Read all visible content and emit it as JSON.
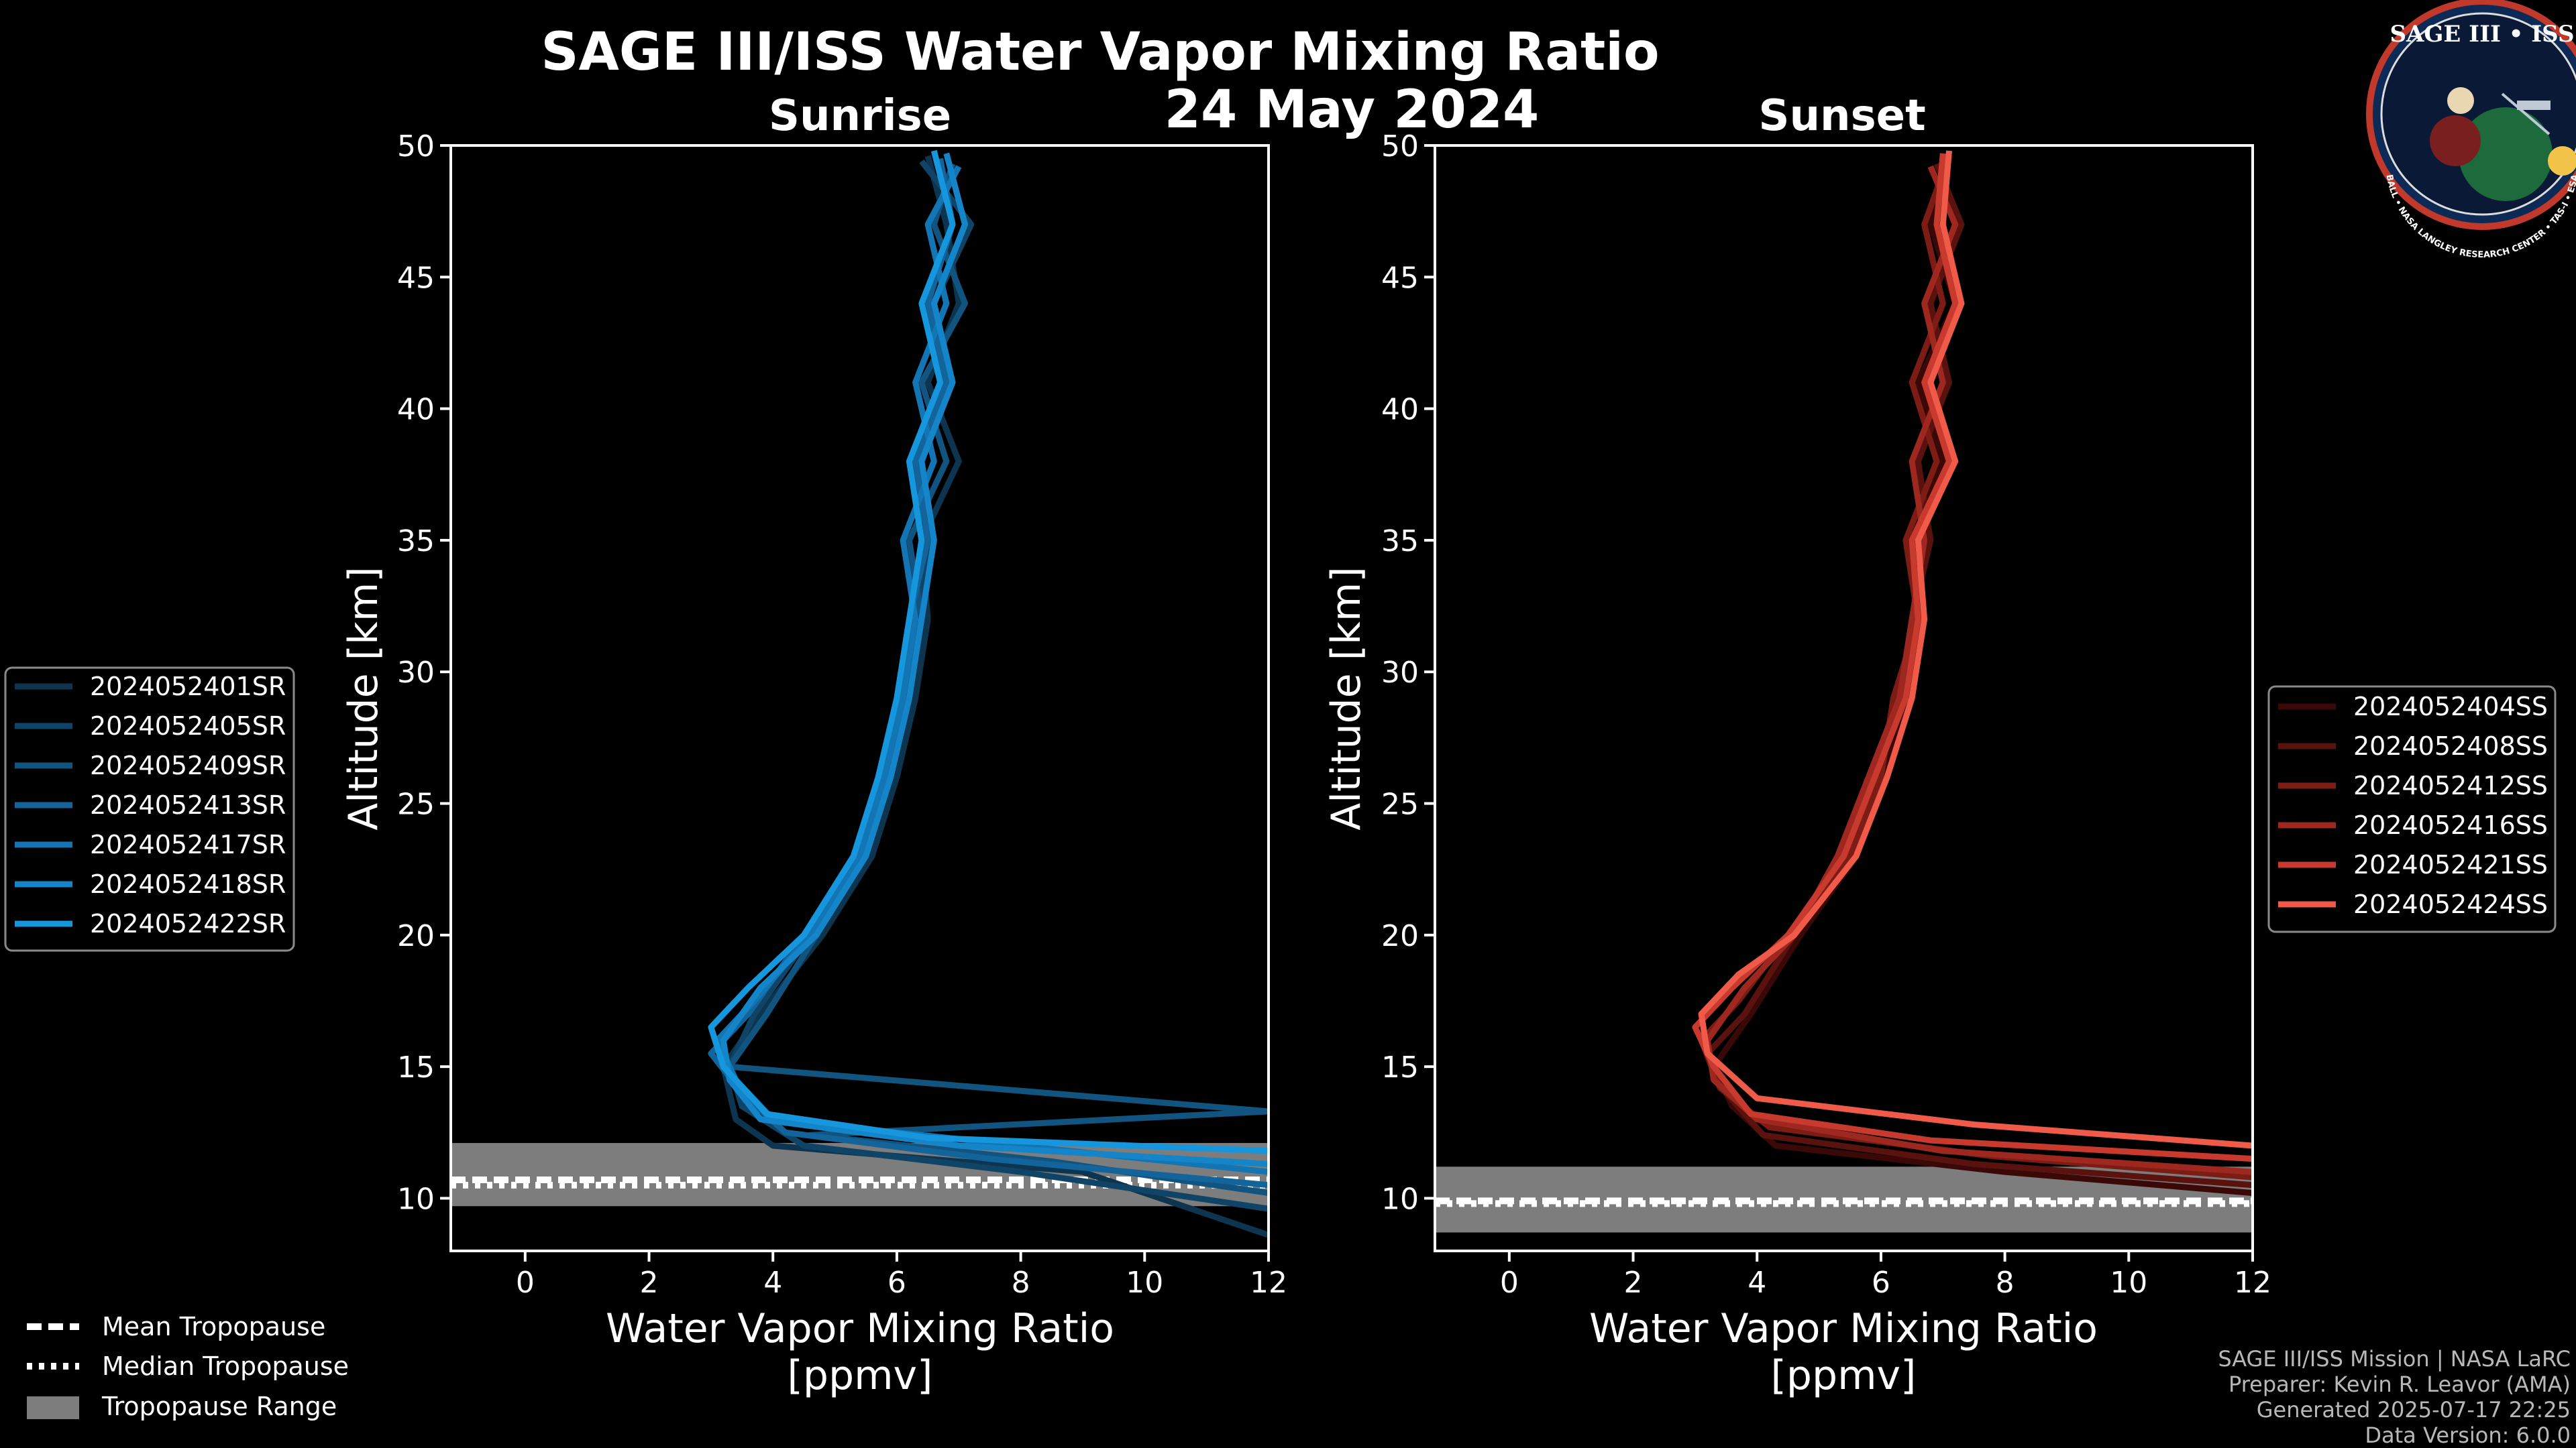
{
  "title": "SAGE III/ISS Water Vapor Mixing Ratio",
  "date": "24 May 2024",
  "logo": {
    "line1": "SAGE III",
    "line2": "ISS",
    "ring_text": "BALL • NASA LANGLEY RESEARCH CENTER • TAS-I • ESA"
  },
  "tropopause_legend": {
    "mean_label": "Mean Tropopause",
    "median_label": "Median Tropopause",
    "range_label": "Tropopause Range"
  },
  "credits": {
    "line1": "SAGE III/ISS Mission | NASA LaRC",
    "line2": "Preparer: Kevin R. Leavor (AMA)",
    "line3": "Generated 2025-07-17 22:25",
    "line4": "Data Version: 6.0.0"
  },
  "colors": {
    "background": "#000000",
    "sunrise_series": [
      "#0d3550",
      "#0f4467",
      "#115480",
      "#12649a",
      "#1375b4",
      "#1485c9",
      "#1696dc"
    ],
    "sunset_series": [
      "#3a0806",
      "#5a120e",
      "#7c1c15",
      "#9e281f",
      "#c83a2d",
      "#f05a48"
    ],
    "tropopause_range": "#7d7d7d"
  },
  "chart_data": [
    {
      "type": "line",
      "title": "Sunrise",
      "xlabel": "Water Vapor Mixing Ratio\n[ppmv]",
      "xlabel_line1": "Water Vapor Mixing Ratio",
      "xlabel_line2": "[ppmv]",
      "ylabel": "Altitude [km]",
      "xlim": [
        -1.2,
        12
      ],
      "ylim": [
        8,
        50
      ],
      "xticks": [
        0,
        2,
        4,
        6,
        8,
        10,
        12
      ],
      "yticks": [
        10,
        15,
        20,
        25,
        30,
        35,
        40,
        45,
        50
      ],
      "tropopause": {
        "mean": 10.7,
        "median": 10.5,
        "range": [
          9.7,
          12.1
        ]
      },
      "series": [
        {
          "name": "2024052401SR",
          "altitude_km": [
            8.6,
            11,
            12,
            13,
            15,
            17,
            20,
            23,
            26,
            29,
            32,
            35,
            38,
            41,
            44,
            47,
            49.6
          ],
          "wvmr_ppmv": [
            12,
            9,
            4,
            3.4,
            3.2,
            3.8,
            4.8,
            5.6,
            6,
            6.3,
            6.5,
            6.4,
            7,
            6.5,
            7,
            6.8,
            6.5
          ]
        },
        {
          "name": "2024052405SR",
          "altitude_km": [
            9.6,
            11,
            12,
            13.5,
            15,
            17,
            20,
            23,
            26,
            29,
            32,
            35,
            38,
            41,
            44,
            47,
            49.4
          ],
          "wvmr_ppmv": [
            12,
            8,
            4.5,
            3.5,
            3.3,
            3.7,
            4.6,
            5.4,
            5.8,
            6.1,
            6.3,
            6.6,
            6.4,
            6.9,
            6.6,
            7.2,
            6.4
          ]
        },
        {
          "name": "2024052409SR",
          "altitude_km": [
            10.2,
            11.4,
            12.4,
            13.3,
            15,
            17,
            20,
            23,
            26,
            29,
            32,
            35,
            38,
            41,
            44,
            47,
            49.3
          ],
          "wvmr_ppmv": [
            12,
            8.5,
            4.6,
            12,
            3.3,
            3.9,
            4.7,
            5.5,
            5.9,
            6.2,
            6.4,
            6.2,
            6.8,
            6.4,
            7.1,
            6.6,
            6.9
          ]
        },
        {
          "name": "2024052413SR",
          "altitude_km": [
            10.5,
            11.5,
            12.5,
            14,
            15.5,
            17,
            20,
            23,
            26,
            29,
            32,
            35,
            38,
            41,
            44,
            47,
            49.5
          ],
          "wvmr_ppmv": [
            12,
            7.5,
            4.2,
            3.5,
            3,
            3.6,
            4.5,
            5.3,
            5.7,
            6,
            6.2,
            6.5,
            6.3,
            6.8,
            6.5,
            6.9,
            6.7
          ]
        },
        {
          "name": "2024052417SR",
          "altitude_km": [
            11,
            12,
            13,
            14.5,
            16,
            17.5,
            20,
            23,
            26,
            29,
            32,
            35,
            38,
            41,
            44,
            47,
            49.2
          ],
          "wvmr_ppmv": [
            12,
            8,
            4,
            3.4,
            3.1,
            3.7,
            4.6,
            5.4,
            5.8,
            6.1,
            6.3,
            6.1,
            6.6,
            6.3,
            6.8,
            6.5,
            7
          ]
        },
        {
          "name": "2024052418SR",
          "altitude_km": [
            11.3,
            12,
            13,
            14.5,
            16,
            18,
            20,
            23,
            26,
            29,
            32,
            35,
            38,
            41,
            44,
            47,
            49.7
          ],
          "wvmr_ppmv": [
            12,
            7,
            3.8,
            3.3,
            3.2,
            3.8,
            4.7,
            5.5,
            5.9,
            6.2,
            6.4,
            6.6,
            6.4,
            6.9,
            6.6,
            7.1,
            6.8
          ]
        },
        {
          "name": "2024052422SR",
          "altitude_km": [
            11.8,
            12.3,
            13.2,
            15,
            16.5,
            18,
            20,
            23,
            26,
            29,
            32,
            35,
            38,
            41,
            44,
            47,
            49.8
          ],
          "wvmr_ppmv": [
            12,
            6.5,
            3.9,
            3.2,
            3,
            3.6,
            4.5,
            5.3,
            5.7,
            6,
            6.2,
            6.4,
            6.2,
            6.7,
            6.4,
            6.9,
            6.6
          ]
        }
      ]
    },
    {
      "type": "line",
      "title": "Sunset",
      "xlabel": "Water Vapor Mixing Ratio\n[ppmv]",
      "xlabel_line1": "Water Vapor Mixing Ratio",
      "xlabel_line2": "[ppmv]",
      "ylabel": "Altitude [km]",
      "xlim": [
        -1.2,
        12
      ],
      "ylim": [
        8,
        50
      ],
      "xticks": [
        0,
        2,
        4,
        6,
        8,
        10,
        12
      ],
      "yticks": [
        10,
        15,
        20,
        25,
        30,
        35,
        40,
        45,
        50
      ],
      "tropopause": {
        "mean": 9.9,
        "median": 9.8,
        "range": [
          8.7,
          11.2
        ]
      },
      "series": [
        {
          "name": "2024052404SS",
          "altitude_km": [
            10.2,
            11,
            12,
            13.5,
            15,
            17,
            20,
            23,
            26,
            29,
            32,
            35,
            38,
            41,
            44,
            47,
            49.5
          ],
          "wvmr_ppmv": [
            12,
            8,
            4.3,
            3.6,
            3.3,
            3.9,
            4.7,
            5.6,
            6,
            6.4,
            6.6,
            6.5,
            7,
            6.6,
            7.2,
            6.8,
            7
          ]
        },
        {
          "name": "2024052408SS",
          "altitude_km": [
            10.5,
            11.3,
            12.4,
            14,
            15.5,
            17,
            20,
            23,
            26,
            29,
            32,
            35,
            38,
            41,
            44,
            47,
            49.3
          ],
          "wvmr_ppmv": [
            12,
            7.5,
            4.1,
            3.5,
            3.2,
            3.8,
            4.6,
            5.4,
            5.9,
            6.3,
            6.5,
            6.8,
            6.6,
            7.1,
            6.8,
            7.3,
            6.9
          ]
        },
        {
          "name": "2024052412SS",
          "altitude_km": [
            10.8,
            11.6,
            12.7,
            14.2,
            16,
            17.5,
            20,
            23,
            26,
            29,
            32,
            35,
            38,
            41,
            44,
            47,
            49.6
          ],
          "wvmr_ppmv": [
            12,
            7.8,
            4.2,
            3.4,
            3.1,
            3.7,
            4.5,
            5.5,
            6,
            6.2,
            6.6,
            6.4,
            6.9,
            6.5,
            7,
            6.7,
            7.1
          ]
        },
        {
          "name": "2024052416SS",
          "altitude_km": [
            11,
            11.8,
            13,
            14.5,
            16,
            18,
            20,
            23,
            26,
            29,
            32,
            35,
            38,
            41,
            44,
            47,
            49.2
          ],
          "wvmr_ppmv": [
            12,
            7,
            4,
            3.3,
            3.2,
            3.8,
            4.6,
            5.3,
            5.8,
            6.3,
            6.5,
            6.7,
            6.5,
            7,
            6.7,
            7.2,
            6.8
          ]
        },
        {
          "name": "2024052421SS",
          "altitude_km": [
            11.5,
            12.2,
            13.2,
            15,
            16.5,
            18,
            20,
            23,
            26,
            29,
            32,
            35,
            38,
            41,
            44,
            47,
            49.7
          ],
          "wvmr_ppmv": [
            12,
            6.8,
            3.9,
            3.3,
            3,
            3.6,
            4.5,
            5.4,
            5.9,
            6.4,
            6.6,
            6.5,
            7.1,
            6.7,
            7.2,
            6.9,
            7
          ]
        },
        {
          "name": "2024052424SS",
          "altitude_km": [
            12,
            12.8,
            13.8,
            15.5,
            17,
            18.5,
            20,
            23,
            26,
            29,
            32,
            35,
            38,
            41,
            44,
            47,
            49.8
          ],
          "wvmr_ppmv": [
            12,
            7.5,
            4,
            3.2,
            3.1,
            3.7,
            4.6,
            5.6,
            6.1,
            6.5,
            6.7,
            6.6,
            7.2,
            6.8,
            7.3,
            7,
            7.1
          ]
        }
      ]
    }
  ]
}
